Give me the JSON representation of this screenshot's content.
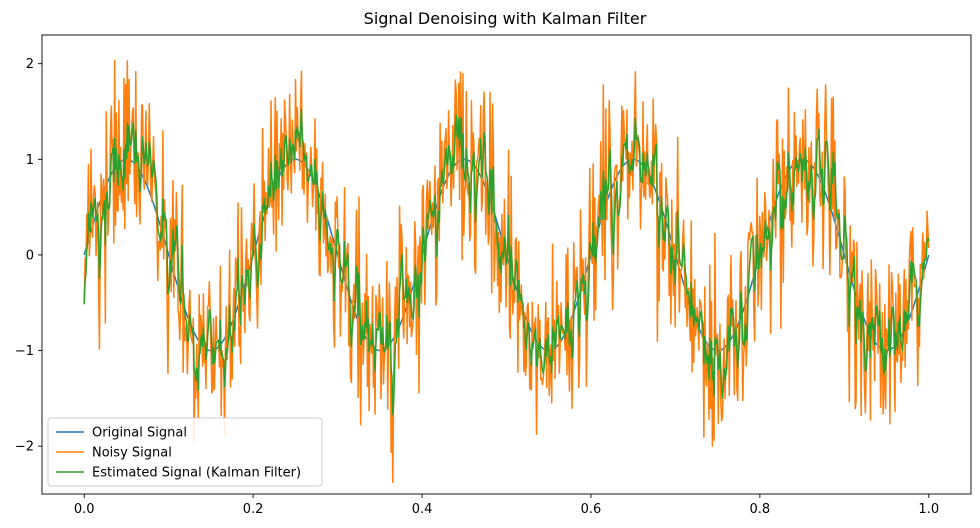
{
  "chart_data": {
    "type": "line",
    "title": "Signal Denoising with Kalman Filter",
    "xlabel": "",
    "ylabel": "",
    "xlim": [
      -0.05,
      1.05
    ],
    "ylim": [
      -2.5,
      2.3
    ],
    "x_ticks": [
      0.0,
      0.2,
      0.4,
      0.6,
      0.8,
      1.0
    ],
    "x_tick_labels": [
      "0.0",
      "0.2",
      "0.4",
      "0.6",
      "0.8",
      "1.0"
    ],
    "y_ticks": [
      -2,
      -1,
      0,
      1,
      2
    ],
    "y_tick_labels": [
      "−2",
      "−1",
      "0",
      "1",
      "2"
    ],
    "grid": false,
    "legend_position": "lower-left",
    "signal": {
      "function": "sin",
      "frequency": 5,
      "amplitude": 1,
      "x_start": 0.0,
      "x_end": 1.0,
      "samples": 1000,
      "noise_std": 0.5
    },
    "series": [
      {
        "name": "Original Signal",
        "color": "#1f77b4"
      },
      {
        "name": "Noisy Signal",
        "color": "#ff7f0e"
      },
      {
        "name": "Estimated Signal (Kalman Filter)",
        "color": "#2ca02c"
      }
    ]
  }
}
